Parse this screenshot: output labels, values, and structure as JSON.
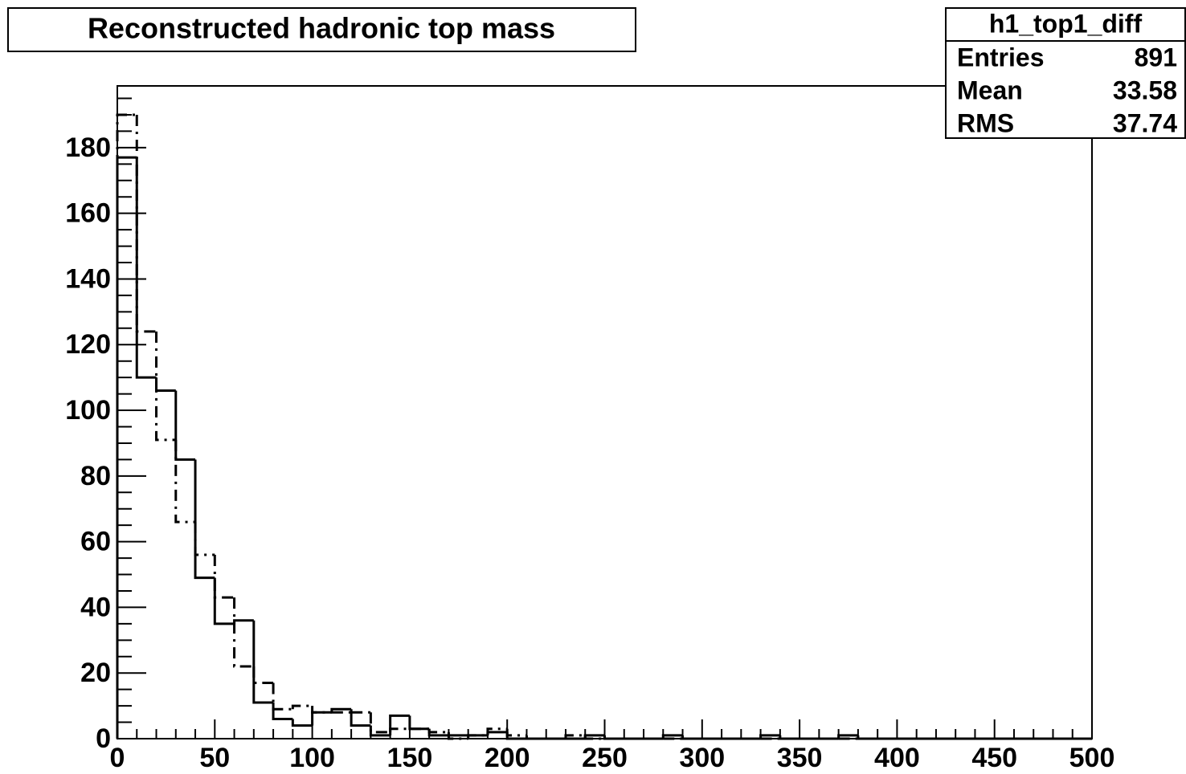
{
  "chart_data": {
    "type": "histogram",
    "title": "Reconstructed hadronic top mass",
    "bins": [
      0,
      10,
      20,
      30,
      40,
      50,
      60,
      70,
      80,
      90,
      100,
      110,
      120,
      130,
      140,
      150,
      160,
      170,
      180,
      190,
      200,
      210,
      220,
      230,
      240,
      250,
      260,
      270,
      280,
      290,
      300,
      310,
      320,
      330,
      340,
      350,
      360,
      370,
      380,
      390,
      400,
      410,
      420,
      430,
      440,
      450,
      460,
      470,
      480,
      490,
      500
    ],
    "series": [
      {
        "color": "#000000",
        "linestyle": "solid",
        "values": [
          177,
          110,
          106,
          85,
          49,
          35,
          36,
          11,
          6,
          4,
          8,
          9,
          4,
          1,
          7,
          3,
          1,
          1,
          1,
          2,
          0,
          0,
          0,
          0,
          1,
          0,
          0,
          0,
          1,
          0,
          0,
          0,
          0,
          1,
          0,
          0,
          0,
          1,
          0,
          0,
          0,
          0,
          0,
          0,
          0,
          0,
          0,
          0,
          0,
          0
        ]
      },
      {
        "color": "#000000",
        "linestyle": "dashdot",
        "values": [
          190,
          124,
          91,
          66,
          56,
          43,
          22,
          17,
          9,
          10,
          8,
          8,
          8,
          2,
          3,
          3,
          2,
          0,
          1,
          3,
          1,
          0,
          0,
          1,
          0,
          0,
          0,
          0,
          0,
          0,
          0,
          0,
          0,
          0,
          0,
          0,
          0,
          0,
          0,
          0,
          0,
          0,
          0,
          0,
          0,
          0,
          0,
          0,
          0,
          0
        ]
      }
    ],
    "xlim": [
      0,
      500
    ],
    "ylim": [
      0,
      198.8
    ],
    "xticks": [
      0,
      50,
      100,
      150,
      200,
      250,
      300,
      350,
      400,
      450,
      500
    ],
    "yticks": [
      0,
      20,
      40,
      60,
      80,
      100,
      120,
      140,
      160,
      180
    ],
    "xminorticks": [
      10,
      20,
      30,
      40,
      60,
      70,
      80,
      90,
      110,
      120,
      130,
      140,
      160,
      170,
      180,
      190,
      210,
      220,
      230,
      240,
      260,
      270,
      280,
      290,
      310,
      320,
      330,
      340,
      360,
      370,
      380,
      390,
      410,
      420,
      430,
      440,
      460,
      470,
      480,
      490
    ],
    "yminorticks": [
      5,
      10,
      15,
      25,
      30,
      35,
      45,
      50,
      55,
      65,
      70,
      75,
      85,
      90,
      95,
      105,
      110,
      115,
      125,
      130,
      135,
      145,
      150,
      155,
      165,
      170,
      175,
      185,
      190,
      195
    ],
    "stats": {
      "title": "h1_top1_diff",
      "rows": [
        {
          "label": "Entries",
          "value": 891
        },
        {
          "label": "Mean",
          "value": 33.58
        },
        {
          "label": "RMS",
          "value": 37.74
        }
      ]
    }
  }
}
